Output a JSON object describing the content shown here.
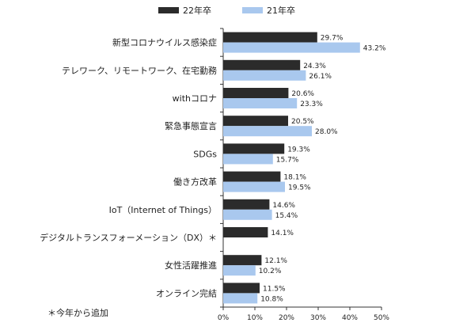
{
  "chart_data": {
    "type": "bar",
    "orientation": "horizontal",
    "categories": [
      "新型コロナウイルス感染症",
      "テレワーク、リモートワーク、在宅勤務",
      "withコロナ",
      "緊急事態宣言",
      "SDGs",
      "働き方改革",
      "IoT（Internet of Things）",
      "デジタルトランスフォーメーション（DX）＊",
      "女性活躍推進",
      "オンライン完結"
    ],
    "series": [
      {
        "name": "22年卒",
        "color": "#2b2b2b",
        "values": [
          29.7,
          24.3,
          20.6,
          20.5,
          19.3,
          18.1,
          14.6,
          14.1,
          12.1,
          11.5
        ],
        "labels": [
          "29.7%",
          "24.3%",
          "20.6%",
          "20.5%",
          "19.3%",
          "18.1%",
          "14.6%",
          "14.1%",
          "12.1%",
          "11.5%"
        ]
      },
      {
        "name": "21年卒",
        "color": "#a9c8ee",
        "values": [
          43.2,
          26.1,
          23.3,
          28.0,
          15.7,
          19.5,
          15.4,
          null,
          10.2,
          10.8
        ],
        "labels": [
          "43.2%",
          "26.1%",
          "23.3%",
          "28.0%",
          "15.7%",
          "19.5%",
          "15.4%",
          "",
          "10.2%",
          "10.8%"
        ]
      }
    ],
    "xlim": [
      0,
      50
    ],
    "xticks": [
      "0%",
      "10%",
      "20%",
      "30%",
      "40%",
      "50%"
    ],
    "legend_position": "top",
    "note": "＊今年から追加"
  }
}
